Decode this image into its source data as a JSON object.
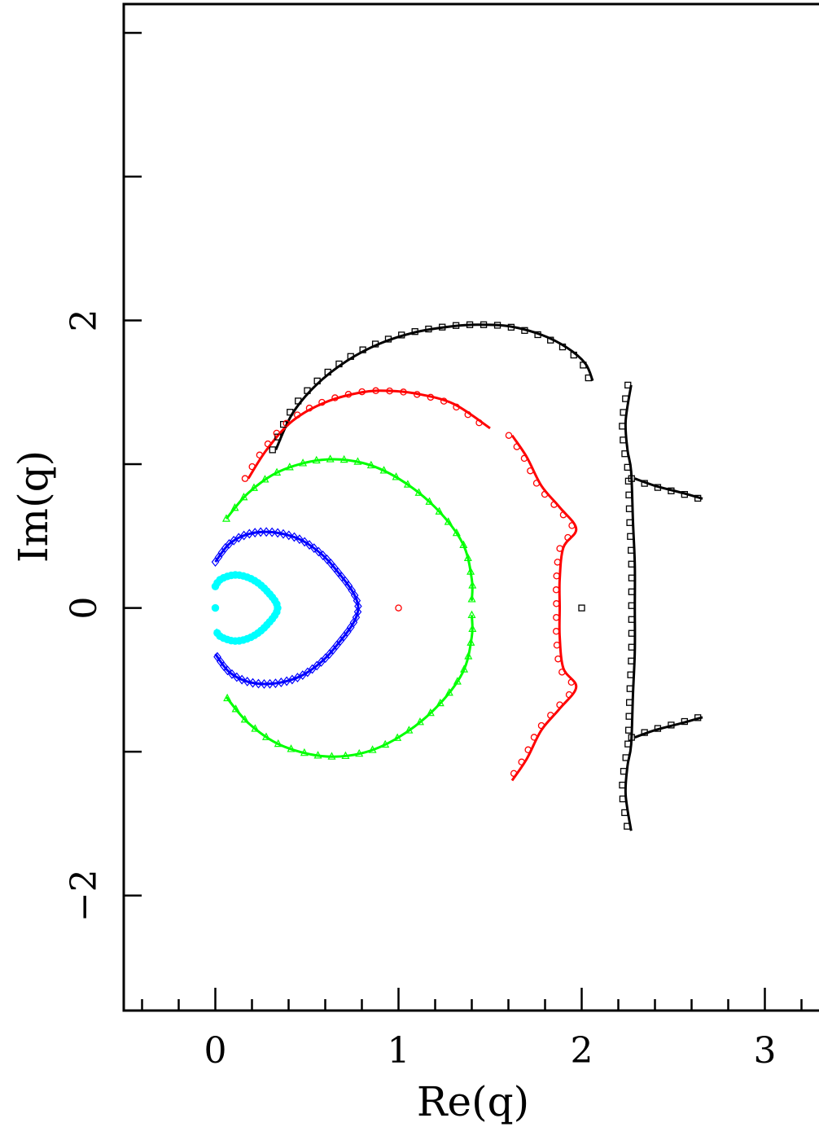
{
  "chart_data": {
    "type": "scatter",
    "xlabel": "Re(q)",
    "ylabel": "Im(q)",
    "xlim": [
      -0.5,
      3.5
    ],
    "ylim": [
      -2.8,
      4.2
    ],
    "x_ticks": [
      {
        "value": 0,
        "label": "0"
      },
      {
        "value": 1,
        "label": "1"
      },
      {
        "value": 2,
        "label": "2"
      },
      {
        "value": 3,
        "label": "3"
      }
    ],
    "y_ticks": [
      {
        "value": -2,
        "label": "−2"
      },
      {
        "value": 0,
        "label": "0"
      },
      {
        "value": 2,
        "label": "2"
      }
    ],
    "grid": false,
    "legend": "none",
    "series": [
      {
        "color": "#000000",
        "marker": "square",
        "curves": [
          [
            [
              0.33,
              1.1
            ],
            [
              0.42,
              1.35
            ],
            [
              0.55,
              1.55
            ],
            [
              0.72,
              1.72
            ],
            [
              0.9,
              1.84
            ],
            [
              1.1,
              1.92
            ],
            [
              1.3,
              1.96
            ],
            [
              1.43,
              1.97
            ],
            [
              1.6,
              1.96
            ],
            [
              1.78,
              1.9
            ],
            [
              1.92,
              1.81
            ],
            [
              2.02,
              1.7
            ],
            [
              2.06,
              1.58
            ]
          ],
          [
            [
              2.27,
              1.55
            ],
            [
              2.24,
              1.3
            ],
            [
              2.25,
              1.1
            ],
            [
              2.27,
              0.95
            ],
            [
              2.28,
              0.6
            ],
            [
              2.29,
              0.3
            ],
            [
              2.29,
              0.0
            ],
            [
              2.29,
              -0.3
            ],
            [
              2.28,
              -0.6
            ],
            [
              2.27,
              -0.95
            ],
            [
              2.25,
              -1.1
            ],
            [
              2.24,
              -1.3
            ],
            [
              2.27,
              -1.55
            ]
          ],
          [
            [
              2.29,
              0.9
            ],
            [
              2.4,
              0.85
            ],
            [
              2.55,
              0.8
            ],
            [
              2.66,
              0.76
            ]
          ],
          [
            [
              2.29,
              -0.9
            ],
            [
              2.4,
              -0.85
            ],
            [
              2.55,
              -0.8
            ],
            [
              2.66,
              -0.76
            ]
          ]
        ]
      },
      {
        "color": "#ff0000",
        "marker": "circle",
        "curves": [
          [
            [
              0.18,
              0.9
            ],
            [
              0.28,
              1.1
            ],
            [
              0.42,
              1.3
            ],
            [
              0.6,
              1.43
            ],
            [
              0.8,
              1.5
            ],
            [
              0.95,
              1.51
            ],
            [
              1.1,
              1.49
            ],
            [
              1.3,
              1.42
            ],
            [
              1.5,
              1.25
            ]
          ],
          [
            [
              1.62,
              1.2
            ],
            [
              1.7,
              1.05
            ],
            [
              1.78,
              0.85
            ],
            [
              1.88,
              0.7
            ],
            [
              1.97,
              0.55
            ],
            [
              1.9,
              0.42
            ],
            [
              1.88,
              0.2
            ],
            [
              1.88,
              0.0
            ],
            [
              1.88,
              -0.2
            ],
            [
              1.9,
              -0.42
            ],
            [
              1.97,
              -0.55
            ],
            [
              1.88,
              -0.7
            ],
            [
              1.78,
              -0.85
            ],
            [
              1.7,
              -1.05
            ],
            [
              1.62,
              -1.2
            ]
          ]
        ]
      },
      {
        "color": "#00ff00",
        "marker": "triangle",
        "curves": [
          [
            [
              0.06,
              0.62
            ],
            [
              0.18,
              0.8
            ],
            [
              0.35,
              0.95
            ],
            [
              0.58,
              1.03
            ],
            [
              0.8,
              1.01
            ],
            [
              1.0,
              0.9
            ],
            [
              1.2,
              0.7
            ],
            [
              1.35,
              0.45
            ],
            [
              1.4,
              0.2
            ],
            [
              1.4,
              0.05
            ]
          ],
          [
            [
              1.4,
              -0.05
            ],
            [
              1.4,
              -0.2
            ],
            [
              1.35,
              -0.45
            ],
            [
              1.2,
              -0.7
            ],
            [
              1.0,
              -0.9
            ],
            [
              0.8,
              -1.01
            ],
            [
              0.58,
              -1.03
            ],
            [
              0.35,
              -0.95
            ],
            [
              0.18,
              -0.8
            ],
            [
              0.06,
              -0.62
            ]
          ]
        ]
      },
      {
        "color": "#0000ff",
        "marker": "diamond",
        "curves": [
          [
            [
              0.0,
              0.32
            ],
            [
              0.08,
              0.45
            ],
            [
              0.2,
              0.52
            ],
            [
              0.35,
              0.52
            ],
            [
              0.5,
              0.45
            ],
            [
              0.65,
              0.28
            ],
            [
              0.78,
              0.0
            ],
            [
              0.65,
              -0.28
            ],
            [
              0.5,
              -0.45
            ],
            [
              0.35,
              -0.52
            ],
            [
              0.2,
              -0.52
            ],
            [
              0.08,
              -0.45
            ],
            [
              0.0,
              -0.32
            ]
          ]
        ]
      },
      {
        "color": "#00ffff",
        "marker": "circle-filled",
        "curves": [
          [
            [
              0.0,
              0.15
            ],
            [
              0.03,
              0.2
            ],
            [
              0.11,
              0.23
            ],
            [
              0.2,
              0.2
            ],
            [
              0.28,
              0.12
            ],
            [
              0.34,
              0.0
            ],
            [
              0.28,
              -0.12
            ],
            [
              0.2,
              -0.2
            ],
            [
              0.11,
              -0.23
            ],
            [
              0.03,
              -0.2
            ],
            [
              0.0,
              -0.15
            ]
          ]
        ]
      }
    ],
    "isolated_points": [
      {
        "x": 0.0,
        "y": 0.0,
        "color": "#00ffff",
        "marker": "circle-filled"
      },
      {
        "x": 1.0,
        "y": 0.0,
        "color": "#ff0000",
        "marker": "circle"
      },
      {
        "x": 2.0,
        "y": 0.0,
        "color": "#000000",
        "marker": "square"
      }
    ]
  }
}
